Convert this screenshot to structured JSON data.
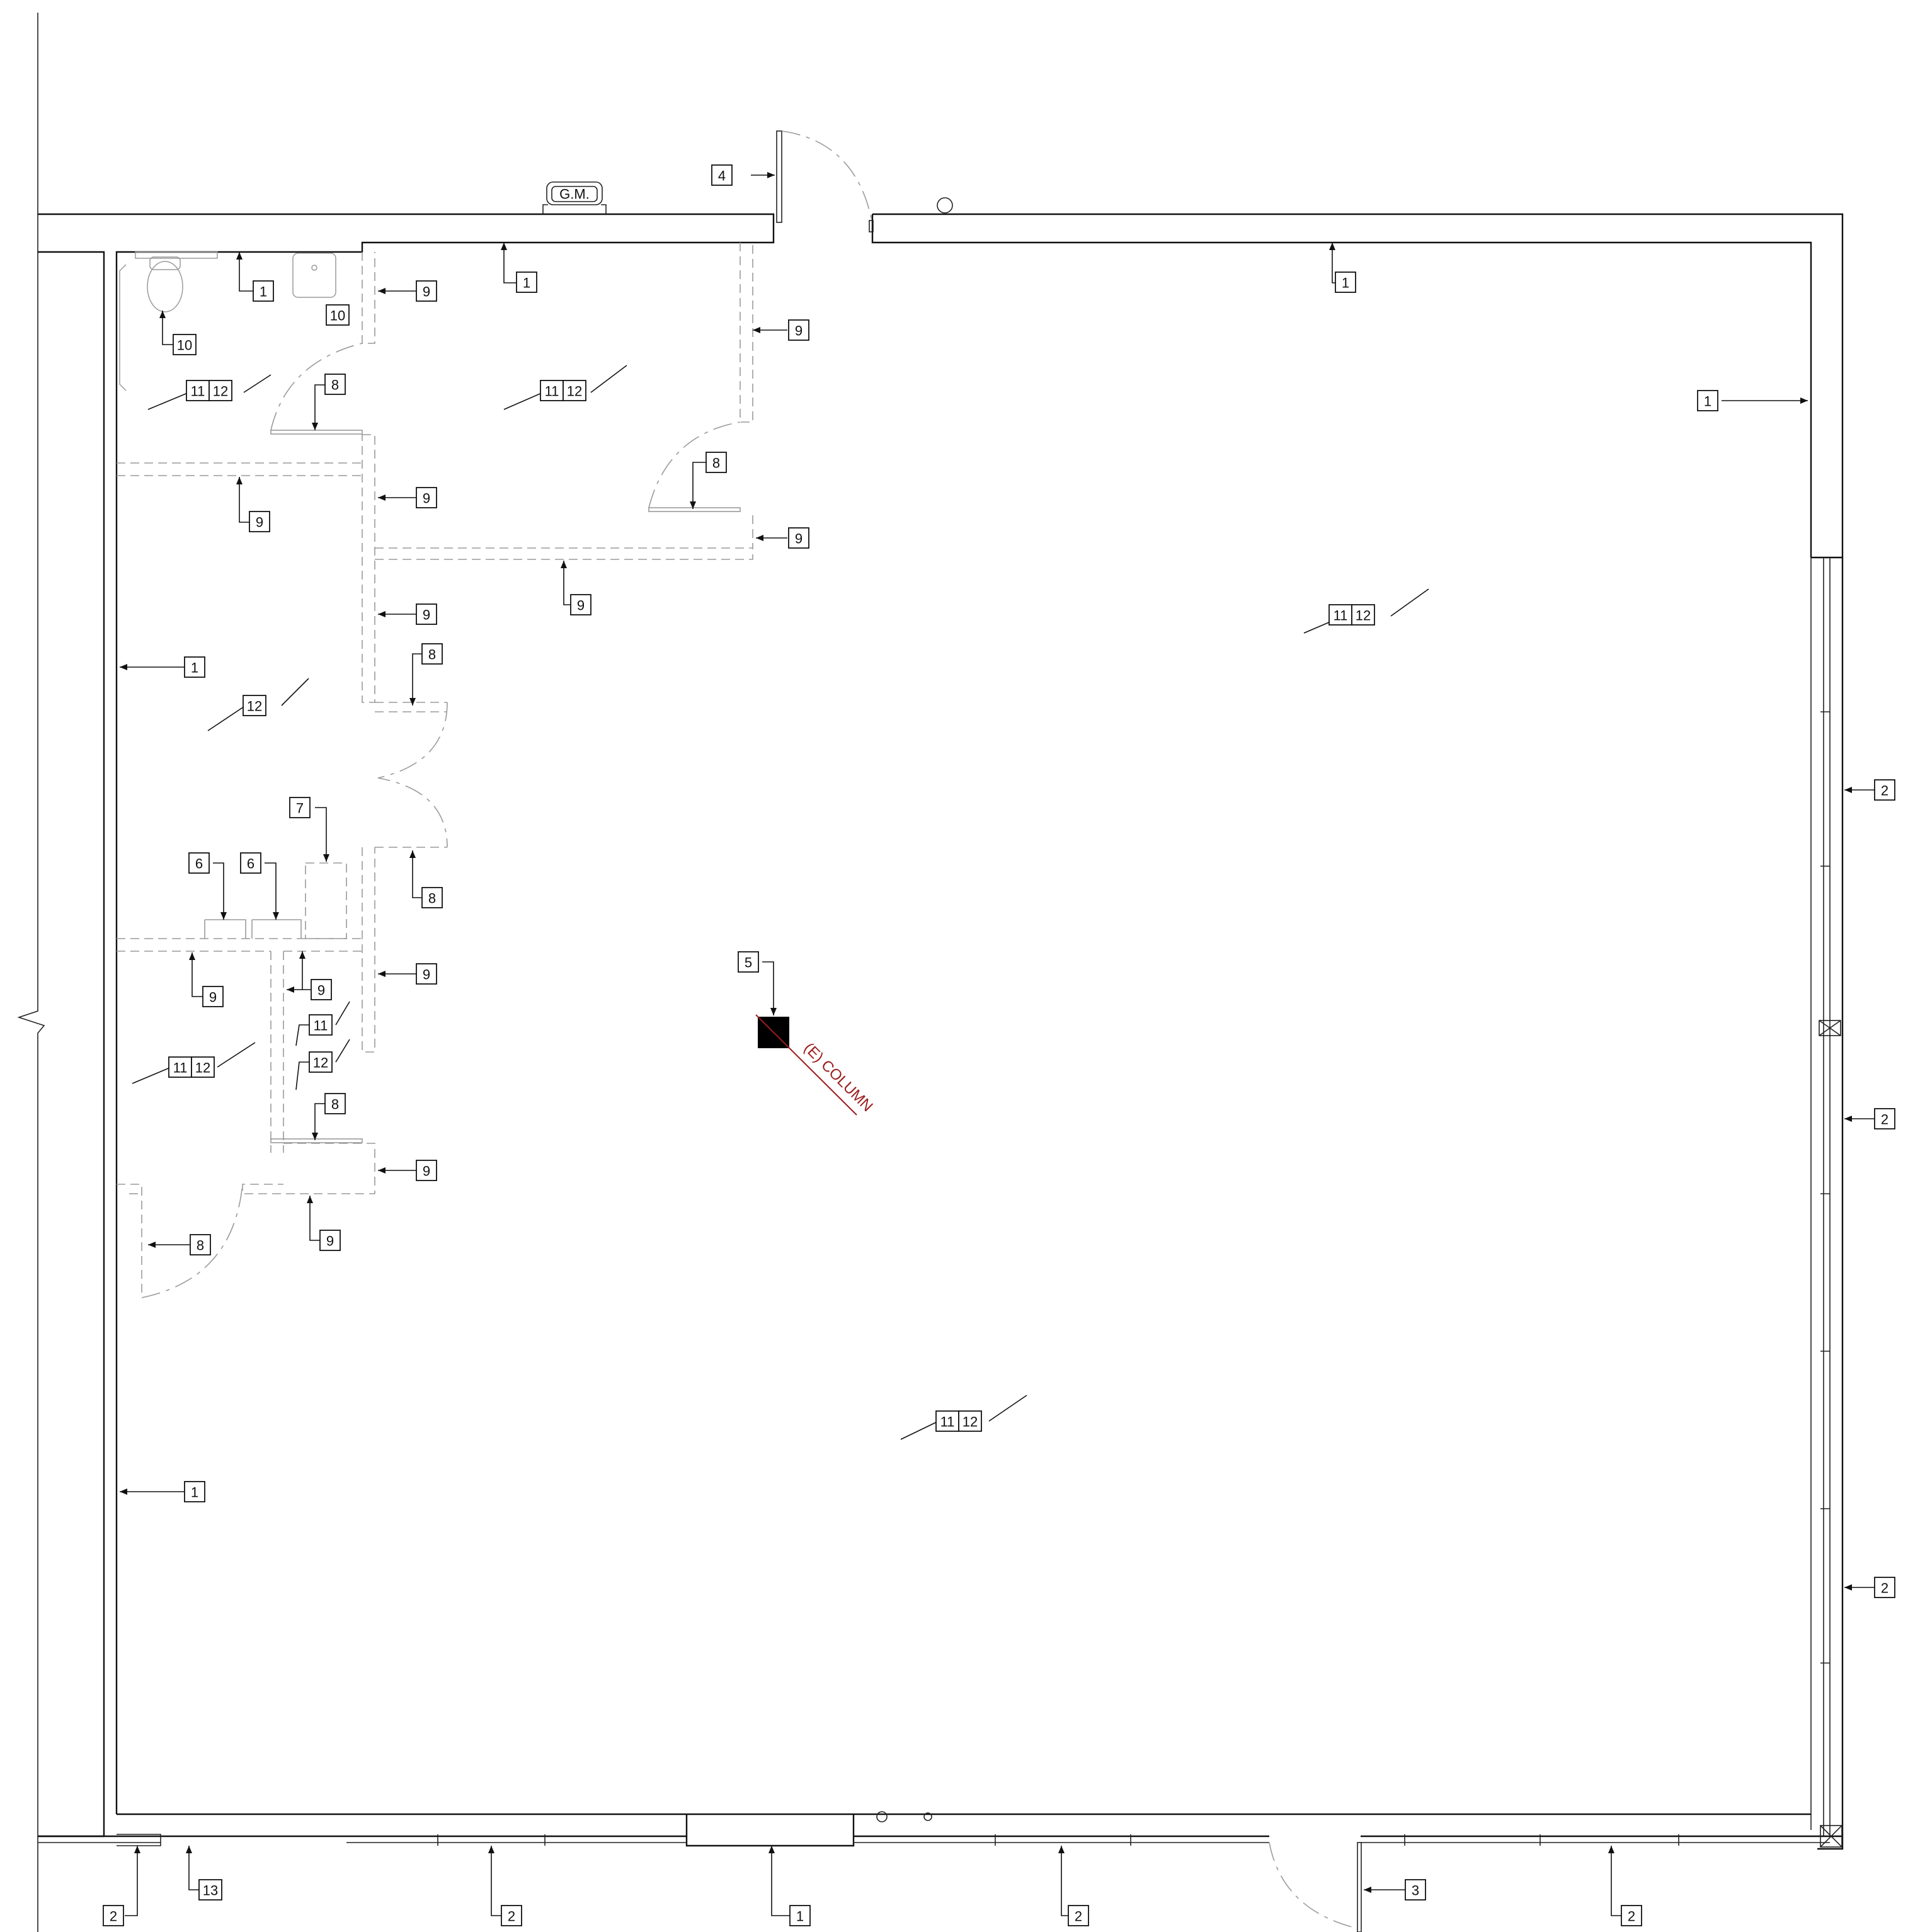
{
  "gas_meter": {
    "label": "G.M."
  },
  "column": {
    "label": "(E) COLUMN",
    "color": "#9b1c1c"
  },
  "keynote_tags": [
    {
      "id": "t-4",
      "text": "4"
    },
    {
      "id": "t-1a",
      "text": "1"
    },
    {
      "id": "t-1b",
      "text": "1"
    },
    {
      "id": "t-1c",
      "text": "1"
    },
    {
      "id": "t-9a",
      "text": "9"
    },
    {
      "id": "t-10a",
      "text": "10"
    },
    {
      "id": "t-10b",
      "text": "10"
    },
    {
      "id": "t-9b",
      "text": "9"
    },
    {
      "id": "t-1112a",
      "text": "11|12"
    },
    {
      "id": "t-8a",
      "text": "8"
    },
    {
      "id": "t-1112b",
      "text": "11|12"
    },
    {
      "id": "t-1d",
      "text": "1"
    },
    {
      "id": "t-8b",
      "text": "8"
    },
    {
      "id": "t-9c",
      "text": "9"
    },
    {
      "id": "t-9d",
      "text": "9"
    },
    {
      "id": "t-9e",
      "text": "9"
    },
    {
      "id": "t-9f",
      "text": "9"
    },
    {
      "id": "t-1112c",
      "text": "11|12"
    },
    {
      "id": "t-9g",
      "text": "9"
    },
    {
      "id": "t-1e",
      "text": "1"
    },
    {
      "id": "t-8c",
      "text": "8"
    },
    {
      "id": "t-12a",
      "text": "12"
    },
    {
      "id": "t-7",
      "text": "7"
    },
    {
      "id": "t-2a",
      "text": "2"
    },
    {
      "id": "t-6a",
      "text": "6"
    },
    {
      "id": "t-6b",
      "text": "6"
    },
    {
      "id": "t-8d",
      "text": "8"
    },
    {
      "id": "t-5",
      "text": "5"
    },
    {
      "id": "t-9h",
      "text": "9"
    },
    {
      "id": "t-9i",
      "text": "9"
    },
    {
      "id": "t-9j",
      "text": "9"
    },
    {
      "id": "t-11a",
      "text": "11"
    },
    {
      "id": "t-12b",
      "text": "12"
    },
    {
      "id": "t-1112d",
      "text": "11|12"
    },
    {
      "id": "t-2b",
      "text": "2"
    },
    {
      "id": "t-8e",
      "text": "8"
    },
    {
      "id": "t-9k",
      "text": "9"
    },
    {
      "id": "t-9l",
      "text": "9"
    },
    {
      "id": "t-8f",
      "text": "8"
    },
    {
      "id": "t-1112e",
      "text": "11|12"
    },
    {
      "id": "t-1f",
      "text": "1"
    },
    {
      "id": "t-2c",
      "text": "2"
    },
    {
      "id": "t-13",
      "text": "13"
    },
    {
      "id": "t-3",
      "text": "3"
    },
    {
      "id": "t-2d",
      "text": "2"
    },
    {
      "id": "t-2e",
      "text": "2"
    },
    {
      "id": "t-1g",
      "text": "1"
    },
    {
      "id": "t-2f",
      "text": "2"
    },
    {
      "id": "t-2g",
      "text": "2"
    }
  ]
}
